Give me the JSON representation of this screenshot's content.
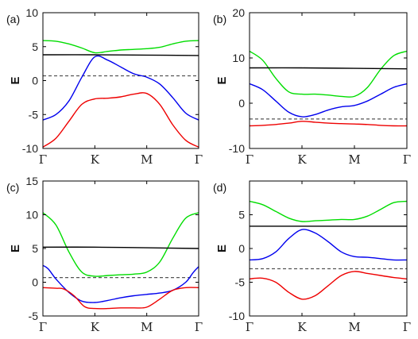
{
  "chart_data": [
    {
      "type": "line",
      "label": "(a)",
      "ylabel": "E",
      "xticks": [
        "Γ",
        "K",
        "M",
        "Γ"
      ],
      "yticks": [
        -10,
        -5,
        0,
        5,
        10
      ],
      "ylim": [
        -10,
        10
      ],
      "xlim": [
        0,
        3
      ],
      "series": [
        {
          "color": "#00dd00",
          "style": "solid",
          "x": [
            0,
            0.25,
            0.5,
            0.75,
            1,
            1.25,
            1.5,
            1.75,
            2,
            2.25,
            2.5,
            2.75,
            3
          ],
          "y": [
            5.9,
            5.8,
            5.4,
            4.8,
            4.1,
            4.3,
            4.5,
            4.6,
            4.7,
            4.9,
            5.4,
            5.8,
            5.9
          ]
        },
        {
          "color": "#000000",
          "style": "solid",
          "x": [
            0,
            1,
            2,
            3
          ],
          "y": [
            3.8,
            3.8,
            3.75,
            3.7
          ]
        },
        {
          "color": "#555555",
          "style": "dashed",
          "x": [
            0,
            3
          ],
          "y": [
            0.7,
            0.7
          ]
        },
        {
          "color": "#0000ee",
          "style": "solid",
          "x": [
            0,
            0.25,
            0.5,
            0.75,
            1,
            1.25,
            1.5,
            1.75,
            2,
            2.25,
            2.5,
            2.75,
            3
          ],
          "y": [
            -5.8,
            -5.0,
            -3.0,
            0.5,
            3.5,
            3.0,
            2.0,
            1.0,
            0.5,
            -0.5,
            -2.5,
            -4.8,
            -5.8
          ]
        },
        {
          "color": "#ee0000",
          "style": "solid",
          "x": [
            0,
            0.25,
            0.5,
            0.75,
            1,
            1.25,
            1.5,
            1.75,
            2,
            2.25,
            2.5,
            2.75,
            3
          ],
          "y": [
            -9.8,
            -8.5,
            -6.0,
            -3.5,
            -2.7,
            -2.6,
            -2.4,
            -2.0,
            -1.9,
            -3.5,
            -6.5,
            -8.8,
            -9.8
          ]
        }
      ]
    },
    {
      "type": "line",
      "label": "(b)",
      "ylabel": "E",
      "xticks": [
        "Γ",
        "K",
        "M",
        "Γ"
      ],
      "yticks": [
        -10,
        0,
        10,
        20
      ],
      "ylim": [
        -10,
        20
      ],
      "xlim": [
        0,
        3
      ],
      "series": [
        {
          "color": "#00dd00",
          "style": "solid",
          "x": [
            0,
            0.25,
            0.5,
            0.75,
            1,
            1.25,
            1.5,
            1.75,
            2,
            2.25,
            2.5,
            2.75,
            3
          ],
          "y": [
            11.5,
            9.5,
            5.5,
            2.5,
            2.0,
            2.0,
            1.8,
            1.5,
            1.5,
            3.5,
            7.5,
            10.5,
            11.5
          ]
        },
        {
          "color": "#000000",
          "style": "solid",
          "x": [
            0,
            1,
            2,
            3
          ],
          "y": [
            7.8,
            7.8,
            7.7,
            7.6
          ]
        },
        {
          "color": "#555555",
          "style": "dashed",
          "x": [
            0,
            3
          ],
          "y": [
            -3.5,
            -3.5
          ]
        },
        {
          "color": "#0000ee",
          "style": "solid",
          "x": [
            0,
            0.25,
            0.5,
            0.75,
            1,
            1.25,
            1.5,
            1.75,
            2,
            2.25,
            2.5,
            2.75,
            3
          ],
          "y": [
            4.3,
            3.0,
            0.5,
            -2.0,
            -3.0,
            -2.5,
            -1.5,
            -0.8,
            -0.5,
            0.5,
            2.0,
            3.5,
            4.3
          ]
        },
        {
          "color": "#ee0000",
          "style": "solid",
          "x": [
            0,
            0.25,
            0.5,
            0.75,
            1,
            1.25,
            1.5,
            1.75,
            2,
            2.25,
            2.5,
            2.75,
            3
          ],
          "y": [
            -5.0,
            -4.9,
            -4.7,
            -4.4,
            -4.0,
            -4.2,
            -4.4,
            -4.5,
            -4.6,
            -4.7,
            -4.9,
            -5.0,
            -5.0
          ]
        }
      ]
    },
    {
      "type": "line",
      "label": "(c)",
      "ylabel": "E",
      "xticks": [
        "Γ",
        "K",
        "M",
        "Γ"
      ],
      "yticks": [
        -5,
        0,
        5,
        10,
        15
      ],
      "ylim": [
        -5,
        15
      ],
      "xlim": [
        0,
        3
      ],
      "series": [
        {
          "color": "#00dd00",
          "style": "solid",
          "x": [
            0,
            0.25,
            0.5,
            0.75,
            1,
            1.25,
            1.5,
            1.75,
            2,
            2.25,
            2.5,
            2.75,
            3
          ],
          "y": [
            10.3,
            8.5,
            4.5,
            1.5,
            0.9,
            1.0,
            1.1,
            1.2,
            1.5,
            3.0,
            6.5,
            9.5,
            10.3
          ]
        },
        {
          "color": "#000000",
          "style": "solid",
          "x": [
            0,
            1,
            2,
            3
          ],
          "y": [
            5.2,
            5.2,
            5.1,
            5.0
          ]
        },
        {
          "color": "#555555",
          "style": "dashed",
          "x": [
            0,
            3
          ],
          "y": [
            0.7,
            0.7
          ]
        },
        {
          "color": "#0000ee",
          "style": "solid",
          "x": [
            0,
            0.1,
            0.25,
            0.5,
            0.75,
            1,
            1.25,
            1.5,
            1.75,
            2,
            2.25,
            2.5,
            2.75,
            2.9,
            3
          ],
          "y": [
            2.5,
            2.0,
            0.5,
            -1.5,
            -2.8,
            -3.0,
            -2.7,
            -2.3,
            -2.0,
            -1.8,
            -1.6,
            -1.2,
            0.0,
            1.5,
            2.3
          ]
        },
        {
          "color": "#ee0000",
          "style": "solid",
          "x": [
            0,
            0.25,
            0.4,
            0.6,
            0.8,
            1,
            1.25,
            1.5,
            1.75,
            2,
            2.25,
            2.5,
            2.75,
            3
          ],
          "y": [
            -0.8,
            -0.9,
            -1.0,
            -2.0,
            -3.6,
            -3.9,
            -3.9,
            -3.8,
            -3.8,
            -3.7,
            -2.5,
            -1.2,
            -0.8,
            -0.8
          ]
        }
      ]
    },
    {
      "type": "line",
      "label": "(d)",
      "ylabel": "E",
      "xticks": [
        "Γ",
        "K",
        "M",
        "Γ"
      ],
      "yticks": [
        -10,
        -5,
        0,
        5
      ],
      "ylim": [
        -10,
        10
      ],
      "xlim": [
        0,
        3
      ],
      "series": [
        {
          "color": "#00dd00",
          "style": "solid",
          "x": [
            0,
            0.25,
            0.5,
            0.75,
            1,
            1.25,
            1.5,
            1.75,
            2,
            2.25,
            2.5,
            2.75,
            3
          ],
          "y": [
            7.0,
            6.5,
            5.5,
            4.5,
            4.0,
            4.1,
            4.2,
            4.3,
            4.3,
            4.8,
            5.8,
            6.8,
            7.0
          ]
        },
        {
          "color": "#000000",
          "style": "solid",
          "x": [
            0,
            1,
            2,
            3
          ],
          "y": [
            3.3,
            3.3,
            3.3,
            3.3
          ]
        },
        {
          "color": "#555555",
          "style": "dashed",
          "x": [
            0,
            3
          ],
          "y": [
            -3.0,
            -3.0
          ]
        },
        {
          "color": "#0000ee",
          "style": "solid",
          "x": [
            0,
            0.25,
            0.5,
            0.75,
            1,
            1.25,
            1.5,
            1.75,
            2,
            2.25,
            2.5,
            2.75,
            3
          ],
          "y": [
            -1.7,
            -1.5,
            -0.5,
            1.5,
            2.8,
            2.3,
            1.0,
            -0.5,
            -1.2,
            -1.3,
            -1.5,
            -1.7,
            -1.7
          ]
        },
        {
          "color": "#ee0000",
          "style": "solid",
          "x": [
            0,
            0.25,
            0.5,
            0.75,
            1,
            1.25,
            1.5,
            1.75,
            2,
            2.25,
            2.5,
            2.75,
            3
          ],
          "y": [
            -4.5,
            -4.4,
            -5.0,
            -6.5,
            -7.5,
            -7.0,
            -5.5,
            -4.0,
            -3.4,
            -3.7,
            -4.0,
            -4.3,
            -4.5
          ]
        }
      ]
    }
  ]
}
